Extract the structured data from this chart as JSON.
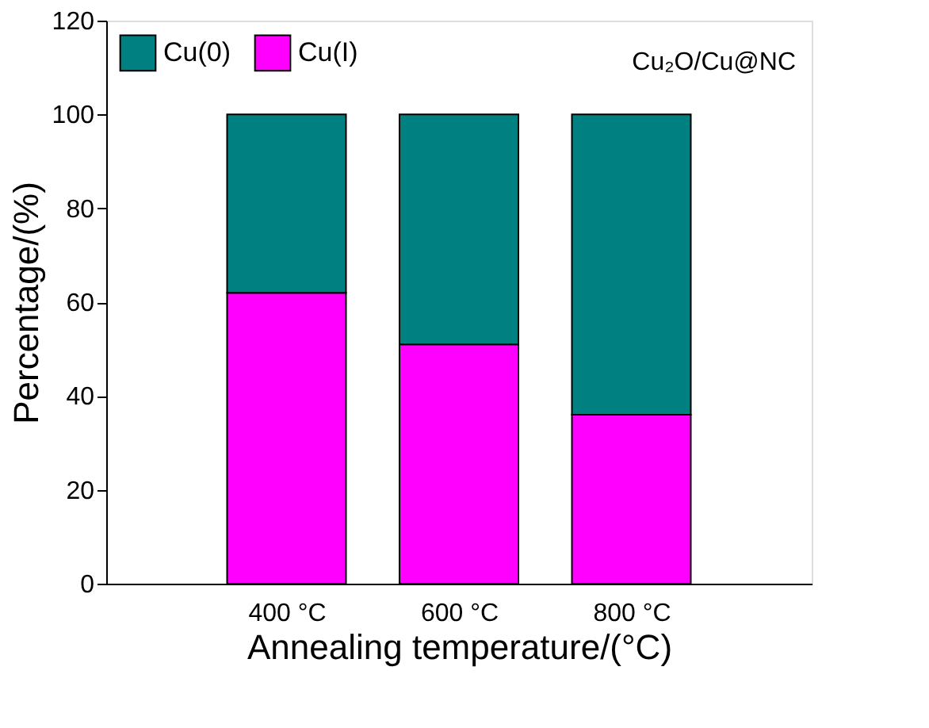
{
  "chart_data": {
    "type": "bar",
    "stacked": true,
    "xlabel": "Annealing temperature/(°C)",
    "ylabel": "Percentage/(%)",
    "categories": [
      "400 °C",
      "600 °C",
      "800 °C"
    ],
    "series": [
      {
        "name": "Cu(I)",
        "color": "#ff00ff",
        "values": [
          62,
          51,
          36
        ]
      },
      {
        "name": "Cu(0)",
        "color": "#008080",
        "values": [
          38,
          49,
          64
        ]
      }
    ],
    "ylim": [
      0,
      120
    ],
    "yticks": [
      0,
      20,
      40,
      60,
      80,
      100,
      120
    ],
    "grid": false,
    "legend": "top left",
    "annotations": [
      "Cu₂O/Cu@NC"
    ]
  }
}
